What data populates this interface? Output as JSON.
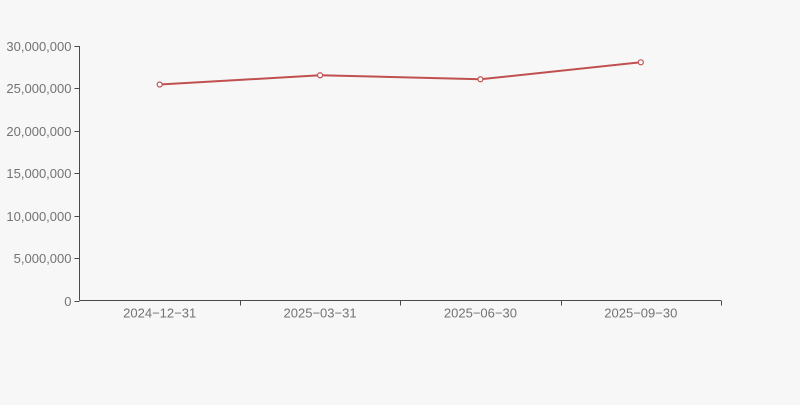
{
  "page": {
    "background_color": "#f7f7f7"
  },
  "chart_data": {
    "type": "line",
    "title": "",
    "xlabel": "",
    "ylabel": "",
    "categories": [
      "2024−12−31",
      "2025−03−31",
      "2025−06−30",
      "2025−09−30"
    ],
    "series": [
      {
        "name": "series-1",
        "values": [
          25460000,
          26550000,
          26080000,
          28080000
        ],
        "color": "#c05050",
        "marker": "hollow-circle",
        "marker_fill": "#ffffff"
      }
    ],
    "ylim": [
      0,
      30000000
    ],
    "yticks": [
      0,
      5000000,
      10000000,
      15000000,
      20000000,
      25000000,
      30000000
    ],
    "ytick_labels": [
      "0",
      "5,000,000",
      "10,000,000",
      "15,000,000",
      "20,000,000",
      "25,000,000",
      "30,000,000"
    ],
    "grid": false,
    "legend": "none",
    "axis_color": "#4a4a4a",
    "text_color": "#737373"
  }
}
